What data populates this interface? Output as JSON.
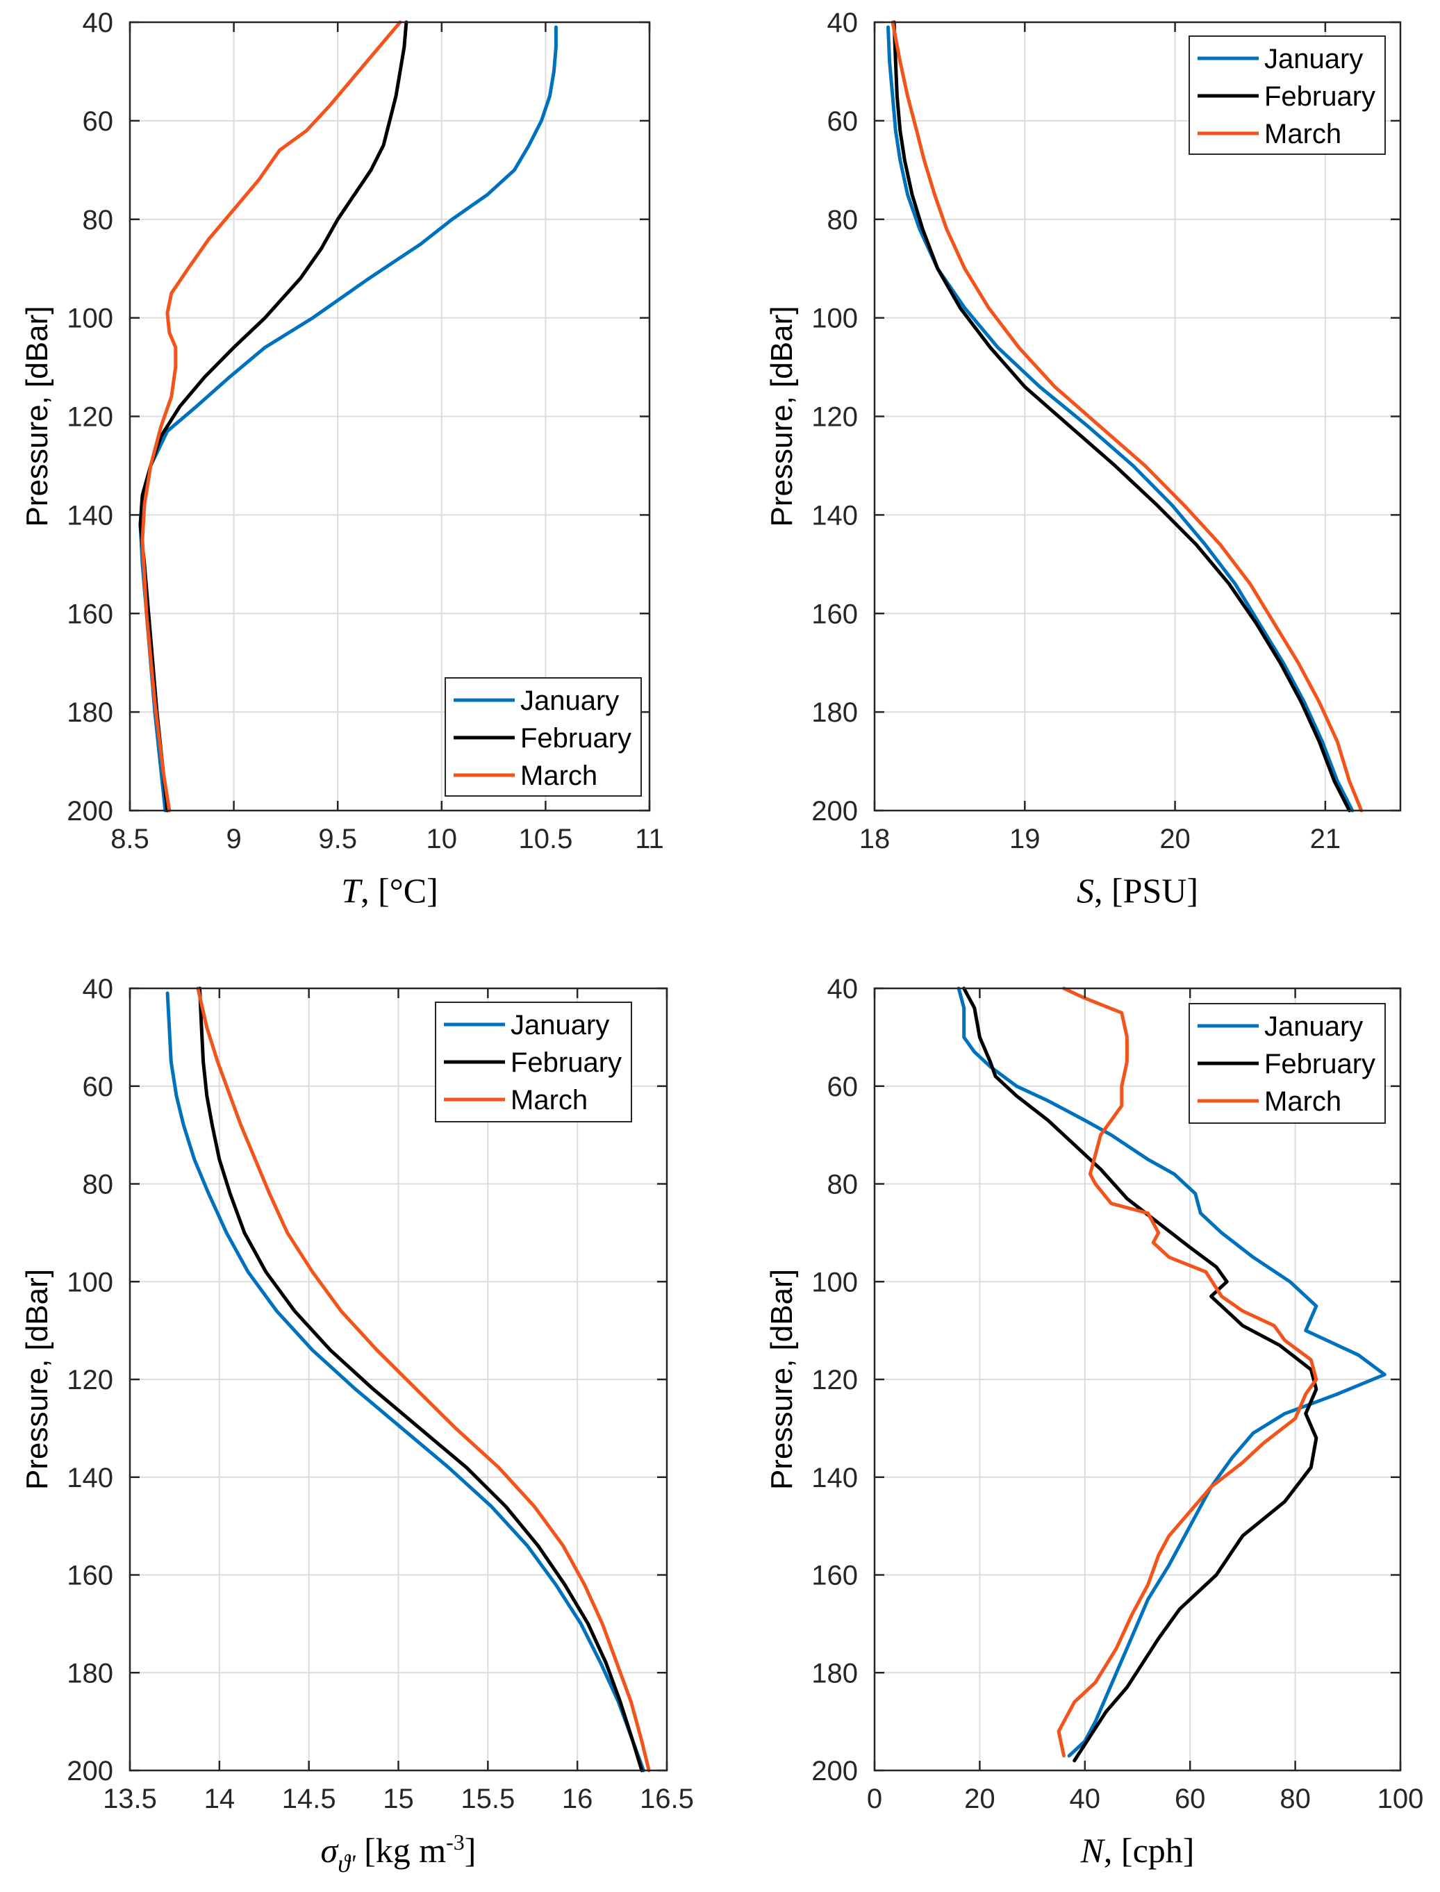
{
  "colors": {
    "January": "#0072BD",
    "February": "#000000",
    "March": "#F2541B"
  },
  "chart_data": [
    {
      "type": "line",
      "id": "temperature",
      "xlabel_italic": "T",
      "xlabel_rest": ", [°C]",
      "ylabel": "Pressure, [dBar]",
      "xlim": [
        8.5,
        11
      ],
      "ylim": [
        40,
        200
      ],
      "y_reversed": true,
      "xticks": [
        8.5,
        9,
        9.5,
        10,
        10.5,
        11
      ],
      "xtick_labels": [
        "8.5",
        "9",
        "9.5",
        "10",
        "10.5",
        "11"
      ],
      "yticks": [
        40,
        60,
        80,
        100,
        120,
        140,
        160,
        180,
        200
      ],
      "ytick_labels": [
        "40",
        "60",
        "80",
        "100",
        "120",
        "140",
        "160",
        "180",
        "200"
      ],
      "legend_position": "bottom-right",
      "series": [
        {
          "name": "January",
          "x": [
            10.55,
            10.55,
            10.54,
            10.52,
            10.48,
            10.42,
            10.35,
            10.22,
            10.05,
            9.9,
            9.65,
            9.38,
            9.15,
            8.98,
            8.82,
            8.68,
            8.6,
            8.56,
            8.55,
            8.56,
            8.59,
            8.62,
            8.65,
            8.67
          ],
          "y": [
            41,
            45,
            50,
            55,
            60,
            65,
            70,
            75,
            80,
            85,
            92,
            100,
            106,
            112,
            118,
            123,
            130,
            136,
            142,
            150,
            165,
            180,
            192,
            200
          ]
        },
        {
          "name": "February",
          "x": [
            9.83,
            9.82,
            9.8,
            9.78,
            9.75,
            9.72,
            9.66,
            9.58,
            9.5,
            9.42,
            9.32,
            9.15,
            9.0,
            8.86,
            8.74,
            8.65,
            8.6,
            8.56,
            8.55,
            8.57,
            8.6,
            8.63,
            8.66,
            8.68
          ],
          "y": [
            40,
            45,
            50,
            55,
            60,
            65,
            70,
            75,
            80,
            86,
            92,
            100,
            106,
            112,
            118,
            124,
            130,
            136,
            142,
            150,
            165,
            180,
            192,
            200
          ]
        },
        {
          "name": "March",
          "x": [
            9.8,
            9.72,
            9.6,
            9.46,
            9.35,
            9.22,
            9.12,
            9.0,
            8.88,
            8.78,
            8.7,
            8.68,
            8.69,
            8.72,
            8.72,
            8.7,
            8.65,
            8.6,
            8.57,
            8.56,
            8.58,
            8.62,
            8.66,
            8.69
          ],
          "y": [
            40,
            44,
            50,
            57,
            62,
            66,
            72,
            78,
            84,
            90,
            95,
            99,
            103,
            106,
            110,
            116,
            122,
            130,
            138,
            145,
            160,
            178,
            192,
            200
          ]
        }
      ]
    },
    {
      "type": "line",
      "id": "salinity",
      "xlabel_italic": "S",
      "xlabel_rest": ", [PSU]",
      "ylabel": "Pressure, [dBar]",
      "xlim": [
        18,
        21.5
      ],
      "ylim": [
        40,
        200
      ],
      "y_reversed": true,
      "xticks": [
        18,
        19,
        20,
        21
      ],
      "xtick_labels": [
        "18",
        "19",
        "20",
        "21"
      ],
      "yticks": [
        40,
        60,
        80,
        100,
        120,
        140,
        160,
        180,
        200
      ],
      "ytick_labels": [
        "40",
        "60",
        "80",
        "100",
        "120",
        "140",
        "160",
        "180",
        "200"
      ],
      "legend_position": "top-right",
      "series": [
        {
          "name": "January",
          "x": [
            18.09,
            18.1,
            18.12,
            18.14,
            18.17,
            18.22,
            18.3,
            18.42,
            18.6,
            18.82,
            19.1,
            19.42,
            19.72,
            19.98,
            20.2,
            20.4,
            20.56,
            20.72,
            20.86,
            20.98,
            21.08,
            21.18
          ],
          "y": [
            41,
            48,
            55,
            62,
            68,
            75,
            82,
            90,
            98,
            106,
            114,
            122,
            130,
            138,
            146,
            154,
            162,
            170,
            178,
            186,
            194,
            200
          ]
        },
        {
          "name": "February",
          "x": [
            18.13,
            18.14,
            18.15,
            18.17,
            18.2,
            18.25,
            18.32,
            18.42,
            18.57,
            18.77,
            19.0,
            19.3,
            19.6,
            19.88,
            20.14,
            20.36,
            20.54,
            20.7,
            20.84,
            20.96,
            21.06,
            21.16
          ],
          "y": [
            40,
            48,
            55,
            62,
            68,
            75,
            82,
            90,
            98,
            106,
            114,
            122,
            130,
            138,
            146,
            154,
            162,
            170,
            178,
            186,
            194,
            200
          ]
        },
        {
          "name": "March",
          "x": [
            18.12,
            18.17,
            18.22,
            18.28,
            18.33,
            18.4,
            18.48,
            18.6,
            18.76,
            18.96,
            19.2,
            19.5,
            19.8,
            20.06,
            20.3,
            20.5,
            20.66,
            20.82,
            20.96,
            21.08,
            21.16,
            21.24
          ],
          "y": [
            40,
            48,
            55,
            62,
            68,
            75,
            82,
            90,
            98,
            106,
            114,
            122,
            130,
            138,
            146,
            154,
            162,
            170,
            178,
            186,
            194,
            200
          ]
        }
      ]
    },
    {
      "type": "line",
      "id": "density",
      "xlabel_italic": "σ",
      "xlabel_sub": "ϑ'",
      "xlabel_rest": " [kg m",
      "xlabel_sup": "-3",
      "xlabel_end": "]",
      "ylabel": "Pressure, [dBar]",
      "xlim": [
        13.5,
        16.5
      ],
      "ylim": [
        40,
        200
      ],
      "y_reversed": true,
      "xticks": [
        13.5,
        14,
        14.5,
        15,
        15.5,
        16,
        16.5
      ],
      "xtick_labels": [
        "13.5",
        "14",
        "14.5",
        "15",
        "15.5",
        "16",
        "16.5"
      ],
      "yticks": [
        40,
        60,
        80,
        100,
        120,
        140,
        160,
        180,
        200
      ],
      "ytick_labels": [
        "40",
        "60",
        "80",
        "100",
        "120",
        "140",
        "160",
        "180",
        "200"
      ],
      "legend_position": "top-right",
      "series": [
        {
          "name": "January",
          "x": [
            13.71,
            13.72,
            13.73,
            13.76,
            13.8,
            13.86,
            13.94,
            14.04,
            14.16,
            14.32,
            14.52,
            14.76,
            15.02,
            15.28,
            15.52,
            15.72,
            15.88,
            16.02,
            16.13,
            16.23,
            16.31,
            16.37
          ],
          "y": [
            41,
            48,
            55,
            62,
            68,
            75,
            82,
            90,
            98,
            106,
            114,
            122,
            130,
            138,
            146,
            154,
            162,
            170,
            178,
            186,
            194,
            200
          ]
        },
        {
          "name": "February",
          "x": [
            13.89,
            13.9,
            13.91,
            13.93,
            13.96,
            14.0,
            14.06,
            14.14,
            14.26,
            14.42,
            14.62,
            14.86,
            15.12,
            15.38,
            15.6,
            15.78,
            15.93,
            16.06,
            16.16,
            16.24,
            16.31,
            16.36
          ],
          "y": [
            40,
            48,
            55,
            62,
            68,
            75,
            82,
            90,
            98,
            106,
            114,
            122,
            130,
            138,
            146,
            154,
            162,
            170,
            178,
            186,
            194,
            200
          ]
        },
        {
          "name": "March",
          "x": [
            13.88,
            13.93,
            13.99,
            14.06,
            14.12,
            14.2,
            14.28,
            14.38,
            14.52,
            14.68,
            14.88,
            15.1,
            15.32,
            15.56,
            15.76,
            15.92,
            16.04,
            16.14,
            16.22,
            16.3,
            16.36,
            16.4
          ],
          "y": [
            40,
            48,
            55,
            62,
            68,
            75,
            82,
            90,
            98,
            106,
            114,
            122,
            130,
            138,
            146,
            154,
            162,
            170,
            178,
            186,
            194,
            200
          ]
        }
      ]
    },
    {
      "type": "line",
      "id": "buoyancy",
      "xlabel_italic": "N",
      "xlabel_rest": ", [cph]",
      "ylabel": "Pressure, [dBar]",
      "xlim": [
        0,
        100
      ],
      "ylim": [
        40,
        200
      ],
      "y_reversed": true,
      "xticks": [
        0,
        20,
        40,
        60,
        80,
        100
      ],
      "xtick_labels": [
        "0",
        "20",
        "40",
        "60",
        "80",
        "100"
      ],
      "yticks": [
        40,
        60,
        80,
        100,
        120,
        140,
        160,
        180,
        200
      ],
      "ytick_labels": [
        "40",
        "60",
        "80",
        "100",
        "120",
        "140",
        "160",
        "180",
        "200"
      ],
      "legend_position": "top-right",
      "series": [
        {
          "name": "January",
          "x": [
            16,
            17,
            17,
            19,
            22,
            27,
            33,
            40,
            45,
            52,
            57,
            61,
            62,
            66,
            72,
            79,
            84,
            82,
            92,
            97,
            88,
            78,
            72,
            68,
            64,
            60,
            56,
            52,
            50,
            48,
            46,
            44,
            42,
            40,
            37
          ],
          "y": [
            40,
            44,
            50,
            53,
            56,
            60,
            63,
            67,
            70,
            75,
            78,
            82,
            86,
            90,
            95,
            100,
            105,
            110,
            115,
            119,
            123,
            127,
            131,
            136,
            142,
            150,
            158,
            165,
            170,
            175,
            180,
            185,
            190,
            194,
            197
          ]
        },
        {
          "name": "February",
          "x": [
            17,
            19,
            20,
            22,
            23,
            27,
            33,
            38,
            43,
            48,
            54,
            60,
            65,
            67,
            64,
            70,
            77,
            83,
            84,
            82,
            84,
            83,
            78,
            70,
            65,
            58,
            54,
            51,
            48,
            44,
            41,
            38
          ],
          "y": [
            40,
            44,
            50,
            55,
            58,
            62,
            67,
            72,
            77,
            83,
            88,
            93,
            97,
            100,
            103,
            109,
            113,
            118,
            122,
            127,
            132,
            138,
            145,
            152,
            160,
            167,
            173,
            178,
            183,
            188,
            193,
            198
          ]
        },
        {
          "name": "March",
          "x": [
            36,
            40,
            47,
            48,
            48,
            47,
            47,
            45,
            43,
            42,
            41,
            42,
            45,
            52,
            54,
            53,
            56,
            63,
            66,
            70,
            76,
            78,
            83,
            84,
            82,
            80,
            74,
            70,
            64,
            60,
            56,
            54,
            52,
            49,
            46,
            42,
            38,
            35,
            36
          ],
          "y": [
            40,
            42,
            45,
            50,
            55,
            60,
            64,
            67,
            70,
            74,
            78,
            80,
            84,
            86,
            90,
            92,
            95,
            98,
            103,
            106,
            109,
            112,
            116,
            120,
            123,
            128,
            133,
            137,
            142,
            147,
            152,
            156,
            162,
            168,
            175,
            182,
            186,
            192,
            197
          ]
        }
      ]
    }
  ]
}
